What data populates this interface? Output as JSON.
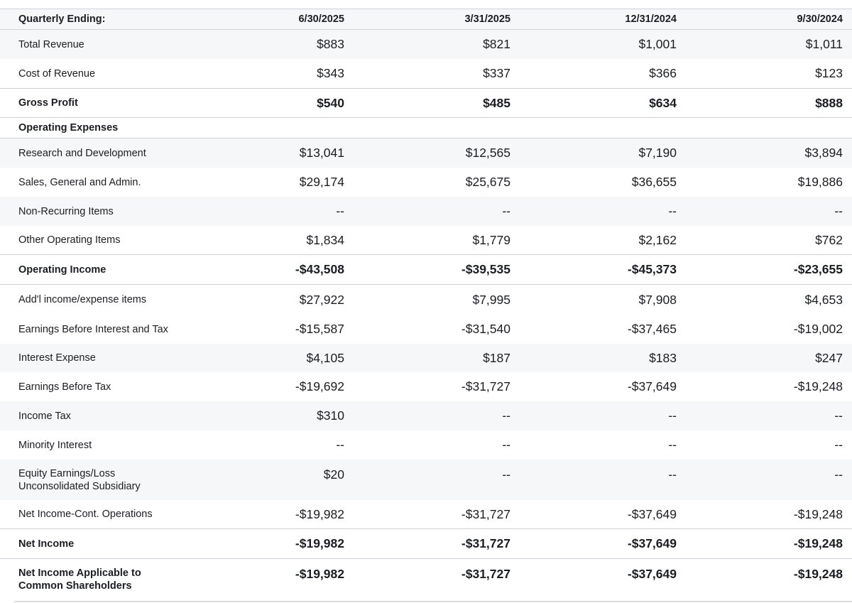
{
  "header": {
    "label": "Quarterly Ending:",
    "periods": [
      "6/30/2025",
      "3/31/2025",
      "12/31/2024",
      "9/30/2024"
    ]
  },
  "rows": [
    {
      "label": "Total Revenue",
      "values": [
        "$883",
        "$821",
        "$1,001",
        "$1,011"
      ]
    },
    {
      "label": "Cost of Revenue",
      "values": [
        "$343",
        "$337",
        "$366",
        "$123"
      ]
    },
    {
      "label": "Gross Profit",
      "values": [
        "$540",
        "$485",
        "$634",
        "$888"
      ]
    },
    {
      "label": "Operating Expenses",
      "values": [
        "",
        "",
        "",
        ""
      ]
    },
    {
      "label": "Research and Development",
      "values": [
        "$13,041",
        "$12,565",
        "$7,190",
        "$3,894"
      ]
    },
    {
      "label": "Sales, General and Admin.",
      "values": [
        "$29,174",
        "$25,675",
        "$36,655",
        "$19,886"
      ]
    },
    {
      "label": "Non-Recurring Items",
      "values": [
        "--",
        "--",
        "--",
        "--"
      ]
    },
    {
      "label": "Other Operating Items",
      "values": [
        "$1,834",
        "$1,779",
        "$2,162",
        "$762"
      ]
    },
    {
      "label": "Operating Income",
      "values": [
        "-$43,508",
        "-$39,535",
        "-$45,373",
        "-$23,655"
      ]
    },
    {
      "label": "Add'l income/expense items",
      "values": [
        "$27,922",
        "$7,995",
        "$7,908",
        "$4,653"
      ]
    },
    {
      "label": "Earnings Before Interest and Tax",
      "values": [
        "-$15,587",
        "-$31,540",
        "-$37,465",
        "-$19,002"
      ]
    },
    {
      "label": "Interest Expense",
      "values": [
        "$4,105",
        "$187",
        "$183",
        "$247"
      ]
    },
    {
      "label": "Earnings Before Tax",
      "values": [
        "-$19,692",
        "-$31,727",
        "-$37,649",
        "-$19,248"
      ]
    },
    {
      "label": "Income Tax",
      "values": [
        "$310",
        "--",
        "--",
        "--"
      ]
    },
    {
      "label": "Minority Interest",
      "values": [
        "--",
        "--",
        "--",
        "--"
      ]
    },
    {
      "label": "Equity Earnings/Loss\nUnconsolidated Subsidiary",
      "values": [
        "$20",
        "--",
        "--",
        "--"
      ]
    },
    {
      "label": "Net Income-Cont. Operations",
      "values": [
        "-$19,982",
        "-$31,727",
        "-$37,649",
        "-$19,248"
      ]
    },
    {
      "label": "Net Income",
      "values": [
        "-$19,982",
        "-$31,727",
        "-$37,649",
        "-$19,248"
      ]
    },
    {
      "label": "Net Income Applicable to\nCommon Shareholders",
      "values": [
        "-$19,982",
        "-$31,727",
        "-$37,649",
        "-$19,248"
      ]
    }
  ]
}
